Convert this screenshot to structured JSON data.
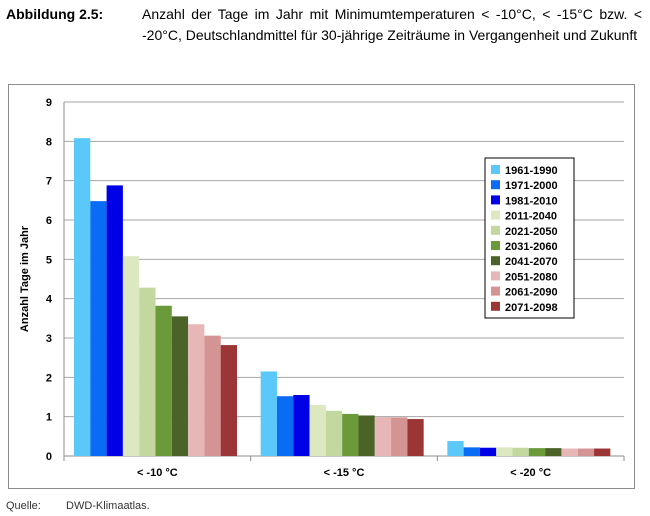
{
  "caption": {
    "label": "Abbildung 2.5:",
    "text": "Anzahl der Tage im Jahr mit Minimumtemperaturen < -10°C, < -15°C bzw. < -20°C, Deutschlandmittel für 30-jährige Zeiträume in Vergangenheit und Zukunft"
  },
  "source": {
    "label": "Quelle:",
    "value": "DWD-Klimaatlas."
  },
  "chart_data": {
    "type": "bar",
    "title": "",
    "xlabel": "",
    "ylabel": "Anzahl Tage im Jahr",
    "ylim": [
      0,
      9
    ],
    "yticks": [
      0,
      1,
      2,
      3,
      4,
      5,
      6,
      7,
      8,
      9
    ],
    "grid": true,
    "legend_position": "right",
    "categories": [
      "< -10 °C",
      "< -15 °C",
      "< -20 °C"
    ],
    "series": [
      {
        "name": "1961-1990",
        "color": "#5bc8fa",
        "values": [
          8.08,
          2.15,
          0.38
        ]
      },
      {
        "name": "1971-2000",
        "color": "#0a6cf5",
        "values": [
          6.48,
          1.52,
          0.22
        ]
      },
      {
        "name": "1981-2010",
        "color": "#0000e6",
        "values": [
          6.88,
          1.55,
          0.21
        ]
      },
      {
        "name": "2011-2040",
        "color": "#dbe8c0",
        "values": [
          5.08,
          1.3,
          0.22
        ]
      },
      {
        "name": "2021-2050",
        "color": "#c2d89e",
        "values": [
          4.28,
          1.15,
          0.21
        ]
      },
      {
        "name": "2031-2060",
        "color": "#6a9a3a",
        "values": [
          3.82,
          1.07,
          0.2
        ]
      },
      {
        "name": "2041-2070",
        "color": "#4b6228",
        "values": [
          3.55,
          1.03,
          0.2
        ]
      },
      {
        "name": "2051-2080",
        "color": "#e6b7b6",
        "values": [
          3.35,
          0.99,
          0.19
        ]
      },
      {
        "name": "2061-2090",
        "color": "#d49493",
        "values": [
          3.06,
          0.98,
          0.19
        ]
      },
      {
        "name": "2071-2098",
        "color": "#9c3636",
        "values": [
          2.82,
          0.94,
          0.19
        ]
      }
    ]
  }
}
